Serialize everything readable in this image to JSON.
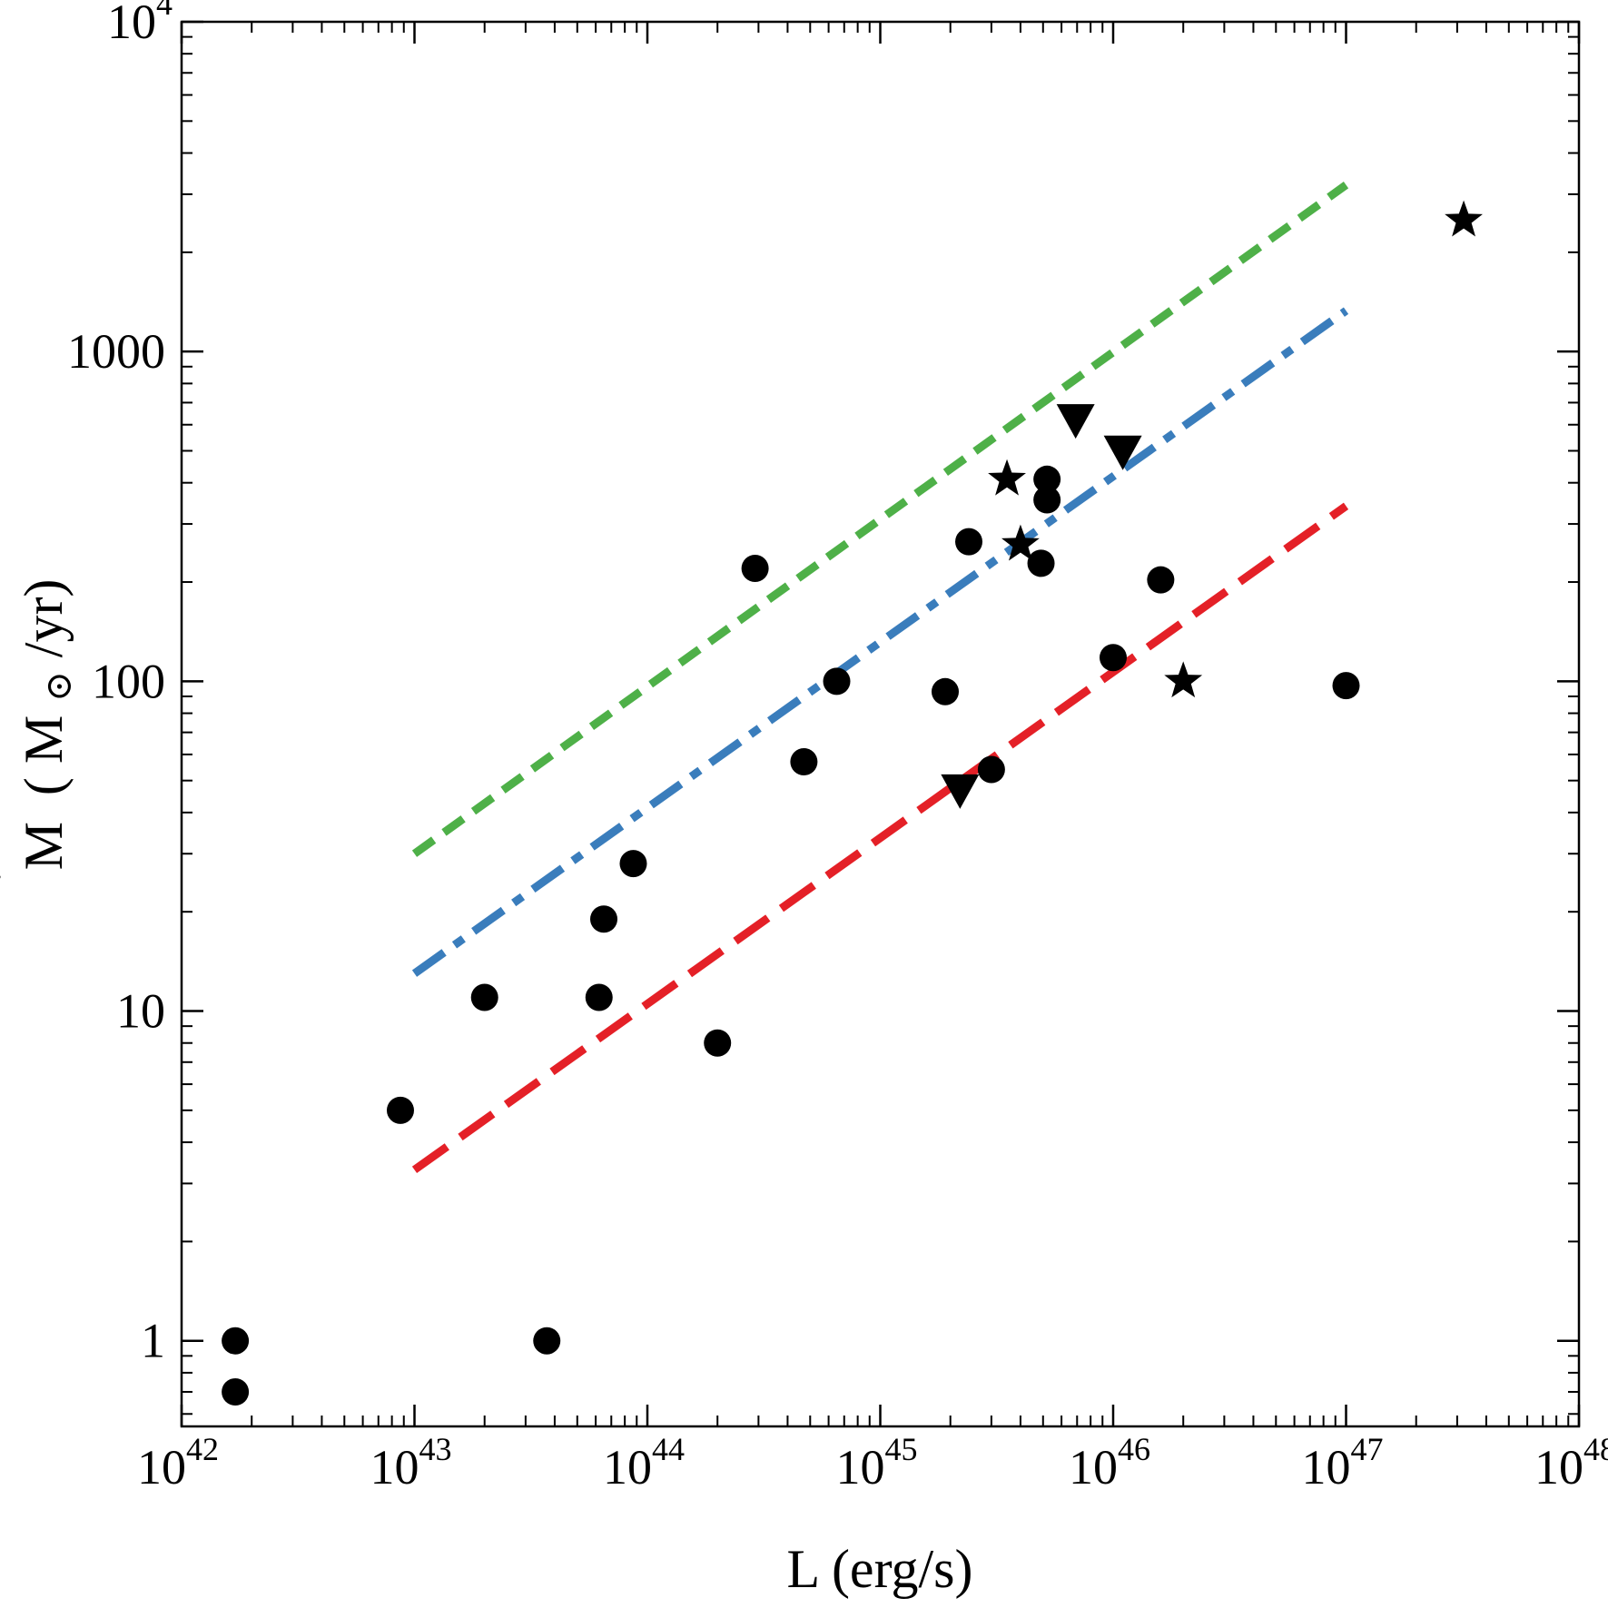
{
  "chart_data": {
    "type": "scatter",
    "title": "",
    "xlabel": "L (erg/s)",
    "ylabel": "Ṁ (M⊙/yr)",
    "ylabel_parts": {
      "base": "M",
      "dot": "˙",
      "paren_open": "(",
      "unit_m": "M",
      "unit_sub": "⊙",
      "unit_rest": "/yr)"
    },
    "x_scale": "log",
    "y_scale": "log",
    "xlim": [
      1e+42,
      1e+48
    ],
    "ylim": [
      0.55,
      10000
    ],
    "grid": false,
    "x_ticks": [
      {
        "value": 1e+42,
        "base": "10",
        "exp": "42"
      },
      {
        "value": 1e+43,
        "base": "10",
        "exp": "43"
      },
      {
        "value": 1e+44,
        "base": "10",
        "exp": "44"
      },
      {
        "value": 1e+45,
        "base": "10",
        "exp": "45"
      },
      {
        "value": 1e+46,
        "base": "10",
        "exp": "46"
      },
      {
        "value": 1e+47,
        "base": "10",
        "exp": "47"
      },
      {
        "value": 1e+48,
        "base": "10",
        "exp": "48"
      }
    ],
    "y_ticks": [
      {
        "value": 1,
        "label": "1"
      },
      {
        "value": 10,
        "label": "10"
      },
      {
        "value": 100,
        "label": "100"
      },
      {
        "value": 1000,
        "label": "1000"
      },
      {
        "value": 10000,
        "base": "10",
        "exp": "4"
      }
    ],
    "series": [
      {
        "name": "circles",
        "marker": "circle",
        "color": "#000000",
        "points": [
          {
            "x": 1.7e+42,
            "y": 1.0
          },
          {
            "x": 1.7e+42,
            "y": 0.7
          },
          {
            "x": 8.7e+42,
            "y": 5.0
          },
          {
            "x": 2e+43,
            "y": 11
          },
          {
            "x": 3.7e+43,
            "y": 1.0
          },
          {
            "x": 6.2e+43,
            "y": 11
          },
          {
            "x": 6.5e+43,
            "y": 19
          },
          {
            "x": 8.7e+43,
            "y": 28
          },
          {
            "x": 2e+44,
            "y": 8.0
          },
          {
            "x": 2.9e+44,
            "y": 220
          },
          {
            "x": 4.7e+44,
            "y": 57
          },
          {
            "x": 6.5e+44,
            "y": 100
          },
          {
            "x": 1.9e+45,
            "y": 93
          },
          {
            "x": 2.4e+45,
            "y": 265
          },
          {
            "x": 3e+45,
            "y": 54
          },
          {
            "x": 4.9e+45,
            "y": 228
          },
          {
            "x": 5.2e+45,
            "y": 410
          },
          {
            "x": 5.2e+45,
            "y": 355
          },
          {
            "x": 1e+46,
            "y": 118
          },
          {
            "x": 1.6e+46,
            "y": 203
          },
          {
            "x": 1e+47,
            "y": 97
          }
        ]
      },
      {
        "name": "stars",
        "marker": "star",
        "color": "#000000",
        "points": [
          {
            "x": 3.5e+45,
            "y": 410
          },
          {
            "x": 4e+45,
            "y": 260
          },
          {
            "x": 2e+46,
            "y": 100
          },
          {
            "x": 3.2e+47,
            "y": 2500
          }
        ]
      },
      {
        "name": "triangles",
        "marker": "triangle-down",
        "color": "#000000",
        "points": [
          {
            "x": 2.2e+45,
            "y": 46
          },
          {
            "x": 6.9e+45,
            "y": 610
          },
          {
            "x": 1.1e+46,
            "y": 490
          }
        ]
      }
    ],
    "lines": [
      {
        "name": "green-dashed-line",
        "color": "#4eb048",
        "style": "short-dash",
        "x": [
          1e+43,
          1e+47
        ],
        "y": [
          30,
          3200
        ]
      },
      {
        "name": "blue-dash-dot-line",
        "color": "#3a7dbc",
        "style": "dash-dot",
        "x": [
          1e+43,
          1e+47
        ],
        "y": [
          13,
          1330
        ]
      },
      {
        "name": "red-long-dashed-line",
        "color": "#e42027",
        "style": "long-dash",
        "x": [
          1e+43,
          1e+47
        ],
        "y": [
          3.3,
          340
        ]
      }
    ]
  }
}
